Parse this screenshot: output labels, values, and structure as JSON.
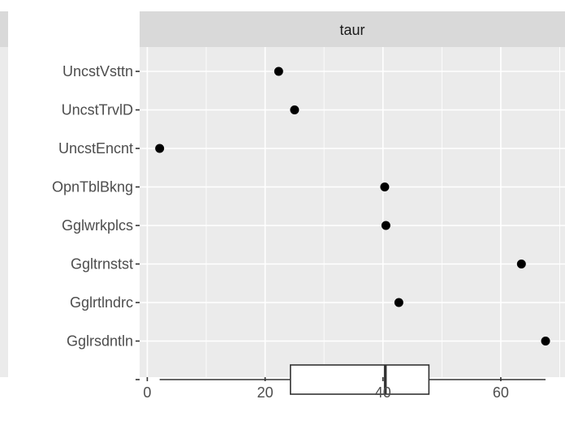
{
  "chart_data": {
    "type": "scatter",
    "facet_label": "taur",
    "categories": [
      "UncstVsttn",
      "UncstTrvlD",
      "UncstEncnt",
      "OpnTblBkng",
      "Gglwrkplcs",
      "Ggltrnstst",
      "Gglrtlndrc",
      "Gglrsdntln"
    ],
    "values": [
      22.3,
      25.0,
      2.1,
      40.3,
      40.5,
      63.5,
      42.7,
      67.6
    ],
    "boxplot": {
      "min": 2.1,
      "q1": 24.3,
      "median": 40.4,
      "q3": 47.8,
      "max": 67.6
    },
    "xlim": [
      -1.3,
      70.9
    ],
    "x_ticks": [
      0,
      20,
      40,
      60
    ],
    "x_tick_labels": [
      "0",
      "20",
      "40",
      "60"
    ],
    "grid": true,
    "colors": {
      "panel": "#ebebeb",
      "strip": "#d9d9d9",
      "grid": "#ffffff",
      "point": "#000000",
      "box_fill": "#ffffff",
      "box_line": "#333333",
      "tick": "#333333"
    }
  }
}
